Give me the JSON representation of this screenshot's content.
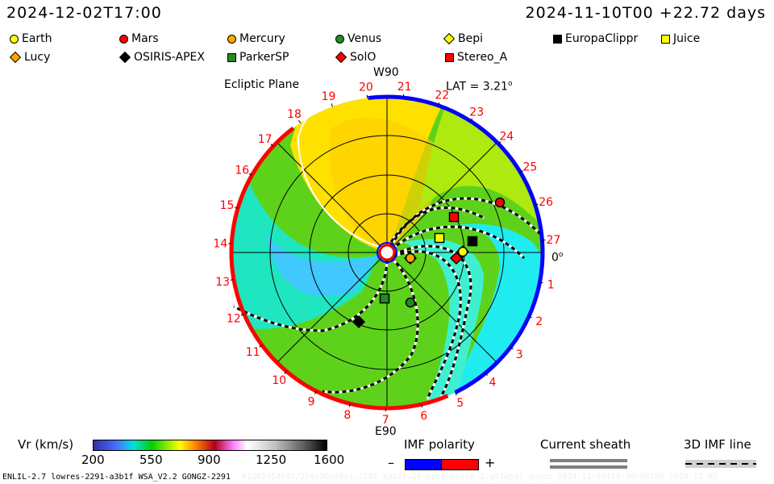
{
  "header": {
    "current_time": "2024-12-02T17:00",
    "run_time": "2024-11-10T00 +22.72 days"
  },
  "legend": [
    {
      "name": "Earth",
      "shape": "circle",
      "color": "#ffff00"
    },
    {
      "name": "Mars",
      "shape": "circle",
      "color": "#ff0000"
    },
    {
      "name": "Mercury",
      "shape": "circle",
      "color": "#ffa500"
    },
    {
      "name": "Venus",
      "shape": "circle",
      "color": "#228b22"
    },
    {
      "name": "Bepi",
      "shape": "diamond",
      "color": "#ffff00"
    },
    {
      "name": "EuropaClippr",
      "shape": "square",
      "color": "#000000"
    },
    {
      "name": "Juice",
      "shape": "square",
      "color": "#ffff00"
    },
    {
      "name": "Lucy",
      "shape": "diamond",
      "color": "#ffa500"
    },
    {
      "name": "OSIRIS-APEX",
      "shape": "diamond",
      "color": "#000000"
    },
    {
      "name": "ParkerSP",
      "shape": "square",
      "color": "#228b22"
    },
    {
      "name": "SolO",
      "shape": "diamond",
      "color": "#ff0000"
    },
    {
      "name": "Stereo_A",
      "shape": "square",
      "color": "#ff0000"
    }
  ],
  "plot": {
    "title": "Ecliptic Plane",
    "top_label": "W90",
    "bottom_label": "E90",
    "lat_label": "LAT = 3.21",
    "lat_unit": "o",
    "angle_label": "0",
    "angle_unit": "o",
    "day_labels": [
      "1",
      "2",
      "3",
      "4",
      "5",
      "6",
      "7",
      "8",
      "9",
      "10",
      "11",
      "12",
      "13",
      "14",
      "15",
      "16",
      "17",
      "18",
      "19",
      "20",
      "21",
      "22",
      "23",
      "24",
      "25",
      "26",
      "27"
    ]
  },
  "colorbar": {
    "label": "Vr (km/s)",
    "ticks": [
      "200",
      "550",
      "900",
      "1250",
      "1600"
    ]
  },
  "imf_polarity": {
    "label": "IMF polarity",
    "minus": "–",
    "plus": "+",
    "neg_color": "#0000ff",
    "pos_color": "#ff0000"
  },
  "current_sheath": {
    "label": "Current sheath"
  },
  "imf_line": {
    "label": "3D IMF line"
  },
  "footer": {
    "left": "ENLIL-2.7 lowres-2291-a3b1f WSA_V2.2 GONGZ-2291",
    "faint": "E1202154502/256x30x90x1.2291-a3b1f.16-mcp1umn1cd-1.g53q5d2.gongz-2024:11:09T19:46:00T00   2024-12-02"
  }
}
